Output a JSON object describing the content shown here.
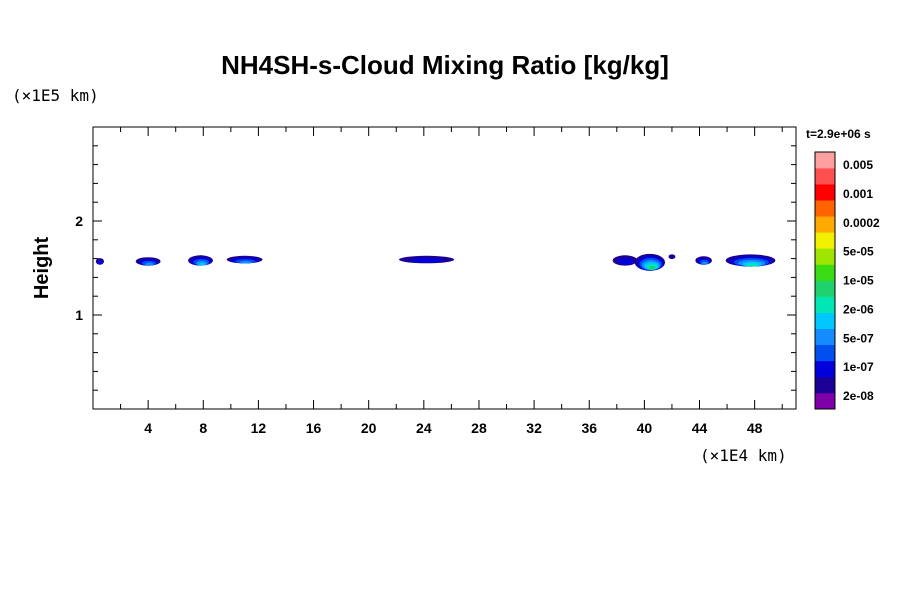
{
  "chart_data": {
    "type": "contour",
    "title": "NH4SH-s-Cloud Mixing Ratio [kg/kg]",
    "ylabel": "Height",
    "xlabel": "",
    "x_unit": "(×1E4 km)",
    "y_unit": "(×1E5 km)",
    "xlim": [
      0,
      51
    ],
    "ylim": [
      0,
      3
    ],
    "x_ticks": [
      4,
      8,
      12,
      16,
      20,
      24,
      28,
      32,
      36,
      40,
      44,
      48
    ],
    "y_ticks": [
      1,
      2
    ],
    "x_minor_step": 2,
    "y_minor_step": 0.2,
    "time_label": "t=2.9e+06 s",
    "colorbar": {
      "labels": [
        "0.005",
        "0.001",
        "0.0002",
        "5e-05",
        "1e-05",
        "2e-06",
        "5e-07",
        "1e-07",
        "2e-08"
      ],
      "colors": [
        "#7f00a8",
        "#1c0096",
        "#0000dc",
        "#0050f0",
        "#148cff",
        "#00c8ff",
        "#00e6b4",
        "#1ed26e",
        "#3cdc14",
        "#9ee600",
        "#f0f000",
        "#ffaa00",
        "#ff6400",
        "#ff0000",
        "#ff5050",
        "#ffa0a0"
      ]
    },
    "cloud_patches": [
      {
        "x_center": 0.5,
        "y_center": 1.57,
        "x_half_width": 0.3,
        "y_half_height": 0.035,
        "max_level": 2
      },
      {
        "x_center": 4.0,
        "y_center": 1.57,
        "x_half_width": 0.9,
        "y_half_height": 0.045,
        "max_level": 4
      },
      {
        "x_center": 7.8,
        "y_center": 1.58,
        "x_half_width": 0.9,
        "y_half_height": 0.055,
        "max_level": 5
      },
      {
        "x_center": 11.0,
        "y_center": 1.59,
        "x_half_width": 1.3,
        "y_half_height": 0.04,
        "max_level": 4
      },
      {
        "x_center": 24.2,
        "y_center": 1.59,
        "x_half_width": 2.0,
        "y_half_height": 0.04,
        "max_level": 2
      },
      {
        "x_center": 38.6,
        "y_center": 1.58,
        "x_half_width": 0.9,
        "y_half_height": 0.055,
        "max_level": 2
      },
      {
        "x_center": 40.4,
        "y_center": 1.56,
        "x_half_width": 1.1,
        "y_half_height": 0.09,
        "max_level": 7
      },
      {
        "x_center": 42.0,
        "y_center": 1.62,
        "x_half_width": 0.25,
        "y_half_height": 0.025,
        "max_level": 1
      },
      {
        "x_center": 44.3,
        "y_center": 1.58,
        "x_half_width": 0.6,
        "y_half_height": 0.045,
        "max_level": 4
      },
      {
        "x_center": 47.7,
        "y_center": 1.58,
        "x_half_width": 1.8,
        "y_half_height": 0.065,
        "max_level": 6
      }
    ]
  }
}
